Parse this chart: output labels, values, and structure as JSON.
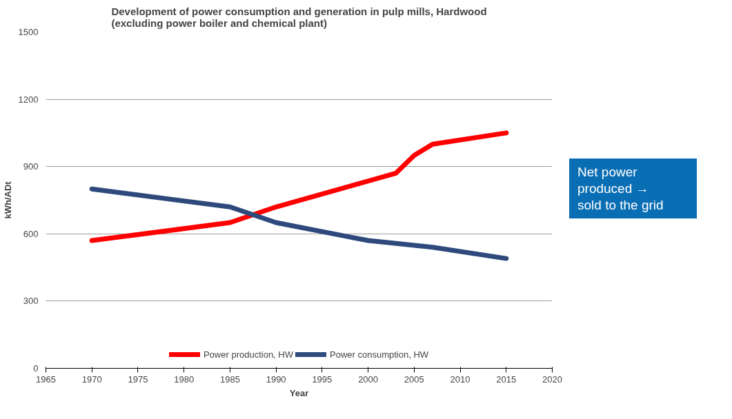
{
  "chart_data": {
    "type": "line",
    "title": "Development of power consumption and generation in pulp mills, Hardwood\n(excluding power boiler and chemical plant)",
    "xlabel": "Year",
    "ylabel": "kWh/ADt",
    "series": [
      {
        "name": "Power production, HW",
        "color": "#ff0000",
        "x": [
          1970,
          1985,
          1990,
          2003,
          2005,
          2007,
          2015
        ],
        "values": [
          570,
          650,
          720,
          870,
          950,
          1000,
          1050
        ]
      },
      {
        "name": "Power consumption, HW",
        "color": "#2e4a7d",
        "x": [
          1970,
          1985,
          1990,
          2000,
          2007,
          2015
        ],
        "values": [
          800,
          720,
          650,
          570,
          540,
          490
        ]
      }
    ],
    "xlim": [
      1965,
      2020
    ],
    "xticks": [
      1965,
      1970,
      1975,
      1980,
      1985,
      1990,
      1995,
      2000,
      2005,
      2010,
      2015,
      2020
    ],
    "ylim": [
      0,
      1500
    ],
    "yticks": [
      0,
      300,
      600,
      900,
      1200,
      1500
    ],
    "grid": "y",
    "legend": "bottom",
    "marker": "none",
    "line_style": "solid",
    "annotations": [
      "Net power produced →\nsold to the grid"
    ]
  }
}
